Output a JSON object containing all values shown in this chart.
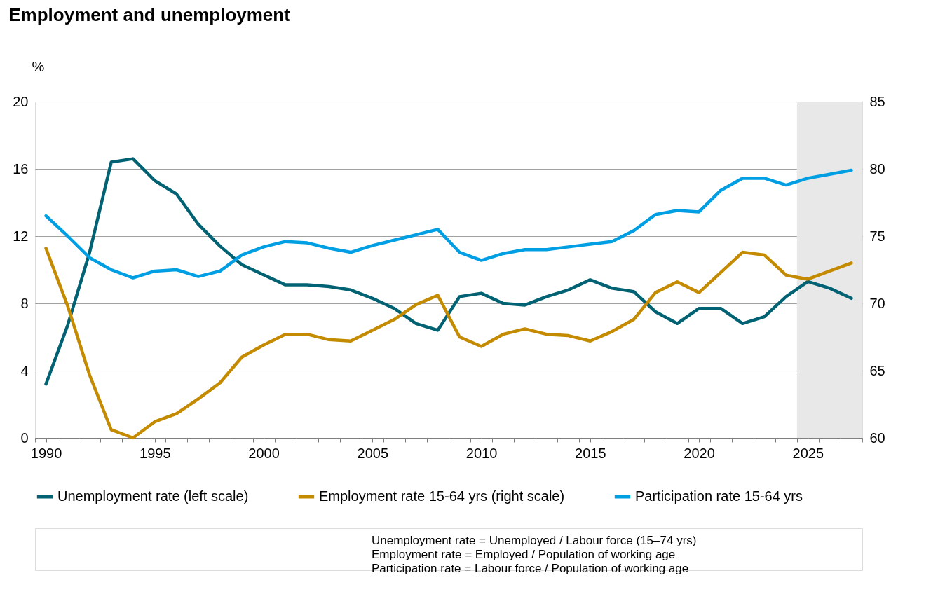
{
  "chart_data": {
    "type": "line",
    "title": "Employment and unemployment",
    "ylabel": "%",
    "x": [
      1990,
      1991,
      1992,
      1993,
      1994,
      1995,
      1996,
      1997,
      1998,
      1999,
      2000,
      2001,
      2002,
      2003,
      2004,
      2005,
      2006,
      2007,
      2008,
      2009,
      2010,
      2011,
      2012,
      2013,
      2014,
      2015,
      2016,
      2017,
      2018,
      2019,
      2020,
      2021,
      2022,
      2023,
      2024,
      2025,
      2026,
      2027
    ],
    "series": [
      {
        "name": "Unemployment rate (left scale)",
        "color": "#006272",
        "axis": "y",
        "values": [
          3.2,
          6.7,
          11.0,
          16.4,
          16.6,
          15.3,
          14.5,
          12.7,
          11.4,
          10.3,
          9.7,
          9.1,
          9.1,
          9.0,
          8.8,
          8.3,
          7.7,
          6.8,
          6.4,
          8.4,
          8.6,
          8.0,
          7.9,
          8.4,
          8.8,
          9.4,
          8.9,
          8.7,
          7.5,
          6.8,
          7.7,
          7.7,
          6.8,
          7.2,
          8.4,
          9.3,
          8.9,
          8.3
        ]
      },
      {
        "name": "Employment rate 15-64 yrs (right scale)",
        "color": "#c48a00",
        "axis": "y2",
        "values": [
          74.1,
          69.8,
          64.7,
          60.6,
          60.0,
          61.2,
          61.8,
          62.9,
          64.1,
          66.0,
          66.9,
          67.7,
          67.7,
          67.3,
          67.2,
          68.0,
          68.8,
          69.9,
          70.6,
          67.5,
          66.8,
          67.7,
          68.1,
          67.7,
          67.6,
          67.2,
          67.9,
          68.8,
          70.8,
          71.6,
          70.8,
          72.3,
          73.8,
          73.6,
          72.1,
          71.8,
          72.4,
          73.0
        ]
      },
      {
        "name": "Participation rate 15-64 yrs",
        "color": "#009fe3",
        "axis": "y2",
        "values": [
          76.5,
          75.0,
          73.4,
          72.5,
          71.9,
          72.4,
          72.5,
          72.0,
          72.4,
          73.6,
          74.2,
          74.6,
          74.5,
          74.1,
          73.8,
          74.3,
          74.7,
          75.1,
          75.5,
          73.8,
          73.2,
          73.7,
          74.0,
          74.0,
          74.2,
          74.4,
          74.6,
          75.4,
          76.6,
          76.9,
          76.8,
          78.4,
          79.3,
          79.3,
          78.8,
          79.3,
          79.6,
          79.9
        ]
      }
    ],
    "xlim": [
      1989.5,
      2027.5
    ],
    "xticks": [
      {
        "value": 1989.5,
        "label": null
      },
      1990,
      {
        "value": 1990.5,
        "label": null
      },
      {
        "value": 1991.5,
        "label": null
      },
      {
        "value": 1992.5,
        "label": null
      },
      {
        "value": 1993.5,
        "label": null
      },
      {
        "value": 1994.5,
        "label": null
      },
      1995,
      {
        "value": 1995.5,
        "label": null
      },
      {
        "value": 1996.5,
        "label": null
      },
      {
        "value": 1997.5,
        "label": null
      },
      {
        "value": 1998.5,
        "label": null
      },
      {
        "value": 1999.5,
        "label": null
      },
      2000,
      {
        "value": 2000.5,
        "label": null
      },
      {
        "value": 2001.5,
        "label": null
      },
      {
        "value": 2002.5,
        "label": null
      },
      {
        "value": 2003.5,
        "label": null
      },
      {
        "value": 2004.5,
        "label": null
      },
      2005,
      {
        "value": 2005.5,
        "label": null
      },
      {
        "value": 2006.5,
        "label": null
      },
      {
        "value": 2007.5,
        "label": null
      },
      {
        "value": 2008.5,
        "label": null
      },
      {
        "value": 2009.5,
        "label": null
      },
      2010,
      {
        "value": 2010.5,
        "label": null
      },
      {
        "value": 2011.5,
        "label": null
      },
      {
        "value": 2012.5,
        "label": null
      },
      {
        "value": 2013.5,
        "label": null
      },
      {
        "value": 2014.5,
        "label": null
      },
      2015,
      {
        "value": 2015.5,
        "label": null
      },
      {
        "value": 2016.5,
        "label": null
      },
      {
        "value": 2017.5,
        "label": null
      },
      {
        "value": 2018.5,
        "label": null
      },
      {
        "value": 2019.5,
        "label": null
      },
      2020,
      {
        "value": 2020.5,
        "label": null
      },
      {
        "value": 2021.5,
        "label": null
      },
      {
        "value": 2022.5,
        "label": null
      },
      {
        "value": 2023.5,
        "label": null
      },
      {
        "value": 2024.5,
        "label": null
      },
      2025,
      {
        "value": 2025.5,
        "label": null
      },
      {
        "value": 2026.5,
        "label": null
      },
      {
        "value": 2027.5,
        "label": null
      }
    ],
    "ylim": [
      0,
      20
    ],
    "yticks": [
      0,
      4,
      8,
      12,
      16,
      20
    ],
    "y2lim": [
      60,
      85
    ],
    "y2ticks": [
      60,
      65,
      70,
      75,
      80,
      85
    ],
    "bands": [
      {
        "axis": "x",
        "from": 2024.5,
        "to": 2027.5,
        "color": "#e8e8e8"
      }
    ],
    "grid": "y",
    "legend": "bottom",
    "line_style": "solid",
    "marker": "none",
    "annotations": [
      "Unemployment rate = Unemployed / Labour force (15–74 yrs)",
      "Employment rate = Employed / Population of working age",
      "Participation rate = Labour force / Population of working age"
    ]
  }
}
